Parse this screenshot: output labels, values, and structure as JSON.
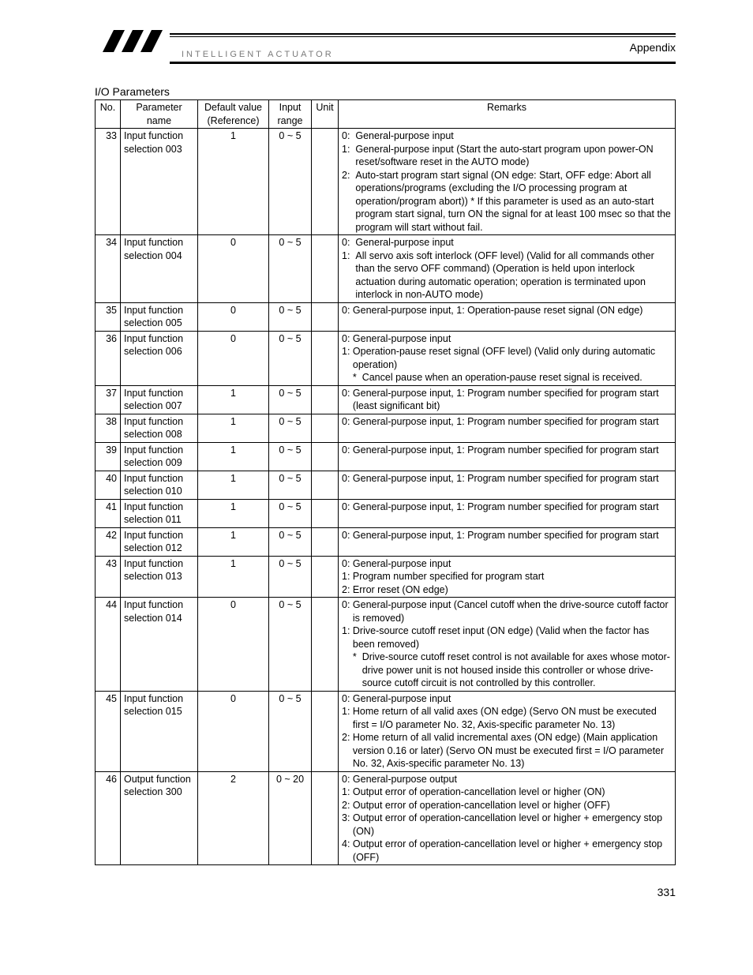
{
  "header": {
    "brand": "INTELLIGENT ACTUATOR",
    "appendix": "Appendix"
  },
  "section_title": "I/O Parameters",
  "columns": {
    "no": "No.",
    "name_l1": "Parameter",
    "name_l2": "name",
    "def_l1": "Default value",
    "def_l2": "(Reference)",
    "range_l1": "Input",
    "range_l2": "range",
    "unit": "Unit",
    "remarks": "Remarks"
  },
  "rows": [
    {
      "no": "33",
      "name": "Input function selection 003",
      "def": "1",
      "range": "0 ~ 5",
      "unit": "",
      "remarks": [
        {
          "pre": "0:  ",
          "body": "General-purpose input"
        },
        {
          "pre": "1:  ",
          "body": "General-purpose input (Start the auto-start program upon power-ON reset/software reset in the AUTO mode)"
        },
        {
          "pre": "2:  ",
          "body": "Auto-start program start signal (ON edge: Start, OFF edge: Abort all operations/programs (excluding the I/O processing program at operation/program abort)) * If this parameter is used as an auto-start program start signal, turn ON the signal for at least 100 msec so that the program will start without fail."
        }
      ]
    },
    {
      "no": "34",
      "name": "Input function selection 004",
      "def": "0",
      "range": "0 ~ 5",
      "unit": "",
      "remarks": [
        {
          "pre": "0:  ",
          "body": "General-purpose input"
        },
        {
          "pre": "1:  ",
          "body": "All servo axis soft interlock (OFF level) (Valid for all commands other than the servo OFF command) (Operation is held upon interlock actuation during automatic operation; operation is terminated upon interlock in non-AUTO mode)"
        }
      ]
    },
    {
      "no": "35",
      "name": "Input function selection 005",
      "def": "0",
      "range": "0 ~ 5",
      "unit": "",
      "remarks": [
        {
          "pre": "0: ",
          "body": "General-purpose input, 1: Operation-pause reset signal (ON edge)"
        }
      ]
    },
    {
      "no": "36",
      "name": "Input function selection 006",
      "def": "0",
      "range": "0 ~ 5",
      "unit": "",
      "remarks": [
        {
          "pre": "0: ",
          "body": "General-purpose input"
        },
        {
          "pre": "1: ",
          "body": "Operation-pause reset signal (OFF level) (Valid only during automatic operation)"
        },
        {
          "pre": "    *  ",
          "body": "Cancel pause when an operation-pause reset signal is received."
        }
      ]
    },
    {
      "no": "37",
      "name": "Input function selection 007",
      "def": "1",
      "range": "0 ~ 5",
      "unit": "",
      "remarks": [
        {
          "pre": "0: ",
          "body": "General-purpose input, 1: Program number specified for program start (least significant bit)"
        }
      ]
    },
    {
      "no": "38",
      "name": "Input function selection 008",
      "def": "1",
      "range": "0 ~ 5",
      "unit": "",
      "remarks": [
        {
          "pre": "0: ",
          "body": "General-purpose input, 1: Program number specified for program start"
        }
      ]
    },
    {
      "no": "39",
      "name": "Input function selection 009",
      "def": "1",
      "range": "0 ~ 5",
      "unit": "",
      "remarks": [
        {
          "pre": "0: ",
          "body": "General-purpose input, 1: Program number specified for program start"
        }
      ]
    },
    {
      "no": "40",
      "name": "Input function selection 010",
      "def": "1",
      "range": "0 ~ 5",
      "unit": "",
      "remarks": [
        {
          "pre": "0: ",
          "body": "General-purpose input, 1: Program number specified for program start"
        }
      ]
    },
    {
      "no": "41",
      "name": "Input function selection 011",
      "def": "1",
      "range": "0 ~ 5",
      "unit": "",
      "remarks": [
        {
          "pre": "0: ",
          "body": "General-purpose input, 1: Program number specified for program start"
        }
      ]
    },
    {
      "no": "42",
      "name": "Input function selection 012",
      "def": "1",
      "range": "0 ~ 5",
      "unit": "",
      "remarks": [
        {
          "pre": "0: ",
          "body": "General-purpose input, 1: Program number specified for program start"
        }
      ]
    },
    {
      "no": "43",
      "name": "Input function selection 013",
      "def": "1",
      "range": "0 ~ 5",
      "unit": "",
      "remarks": [
        {
          "pre": "0: ",
          "body": "General-purpose input"
        },
        {
          "pre": "1: ",
          "body": "Program number specified for program start"
        },
        {
          "pre": "2: ",
          "body": "Error reset (ON edge)"
        }
      ]
    },
    {
      "no": "44",
      "name": "Input function selection 014",
      "def": "0",
      "range": "0 ~ 5",
      "unit": "",
      "remarks": [
        {
          "pre": "0: ",
          "body": "General-purpose input (Cancel cutoff when the drive-source cutoff factor is removed)"
        },
        {
          "pre": "1: ",
          "body": "Drive-source cutoff reset input (ON edge) (Valid when the factor has been removed)"
        },
        {
          "pre": "    *  ",
          "body": "Drive-source cutoff reset control is not available for axes whose motor-drive power unit is not housed inside this controller or whose drive-source cutoff circuit is not controlled by this controller."
        }
      ]
    },
    {
      "no": "45",
      "name": "Input function selection 015",
      "def": "0",
      "range": "0 ~ 5",
      "unit": "",
      "remarks": [
        {
          "pre": "0: ",
          "body": "General-purpose input"
        },
        {
          "pre": "1: ",
          "body": "Home return of all valid axes (ON edge) (Servo ON must be executed first = I/O parameter No. 32, Axis-specific parameter No. 13)"
        },
        {
          "pre": "2: ",
          "body": "Home return of all valid incremental axes (ON edge) (Main application version 0.16 or later) (Servo ON must be executed first = I/O parameter No. 32, Axis-specific parameter No. 13)"
        }
      ]
    },
    {
      "no": "46",
      "name": "Output function selection 300",
      "def": "2",
      "range": "0 ~ 20",
      "unit": "",
      "remarks": [
        {
          "pre": "0: ",
          "body": "General-purpose output"
        },
        {
          "pre": "1: ",
          "body": "Output error of operation-cancellation level or higher (ON)"
        },
        {
          "pre": "2: ",
          "body": "Output error of operation-cancellation level or higher (OFF)"
        },
        {
          "pre": "3: ",
          "body": "Output error of operation-cancellation level or higher + emergency stop (ON)"
        },
        {
          "pre": "4: ",
          "body": "Output error of operation-cancellation level or higher + emergency stop (OFF)"
        }
      ]
    }
  ],
  "page_number": "331"
}
